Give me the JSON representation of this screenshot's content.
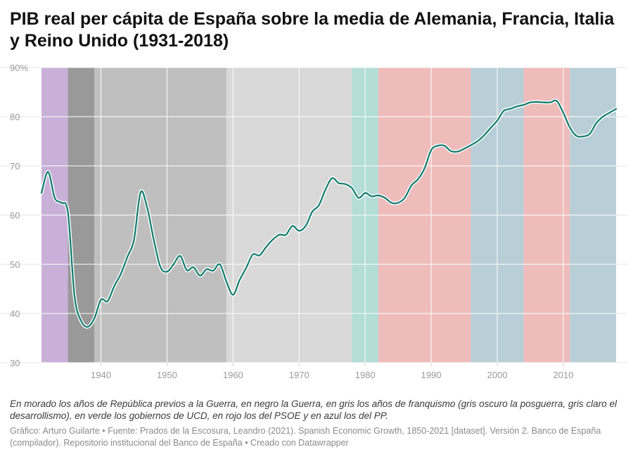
{
  "title": "PIB real per cápita de España sobre la media de Alemania, Francia, Italia y Reino Unido (1931-2018)",
  "note": "En morado los años de República previos a la Guerra, en negro la Guerra, en gris los años de franquismo (gris oscuro la posguerra, gris claro el desarrollismo), en verde los gobiernos de UCD, en rojo los del PSOE y en azul los del PP.",
  "credits": "Gráfico: Arturo Guilarte • Fuente: Prados de la Escosura, Leandro (2021). Spanish Economic Growth, 1850-2021 [dataset]. Versión 2. Banco de España (compilador). Repositorio institucional del Banco de España • Creado con Datawrapper",
  "colors": {
    "line": "#0e7a6b",
    "republica": "#c9b0d8",
    "guerra": "#999999",
    "posguerra": "#bfbfbf",
    "desarrollismo": "#d9d9d9",
    "ucd": "#b3ddd6",
    "psoe": "#efbcbc",
    "pp": "#b9cfd7"
  },
  "chart_data": {
    "type": "line",
    "xlim": [
      1931,
      2018
    ],
    "ylim": [
      30,
      90
    ],
    "x_ticks": [
      1940,
      1950,
      1960,
      1970,
      1980,
      1990,
      2000,
      2010
    ],
    "x_tick_labels": [
      "1940",
      "1950",
      "1960",
      "1970",
      "1980",
      "1990",
      "2000",
      "2010"
    ],
    "y_ticks": [
      30,
      40,
      50,
      60,
      70,
      80,
      90
    ],
    "y_tick_labels": [
      "30",
      "40",
      "50",
      "60",
      "70",
      "80",
      "90%"
    ],
    "grid": true,
    "periods": [
      {
        "name": "República",
        "start": 1931,
        "end": 1935,
        "color": "#c9b0d8"
      },
      {
        "name": "Guerra",
        "start": 1935,
        "end": 1939,
        "color": "#999999"
      },
      {
        "name": "Posguerra",
        "start": 1939,
        "end": 1959,
        "color": "#bfbfbf"
      },
      {
        "name": "Desarrollismo",
        "start": 1959,
        "end": 1978,
        "color": "#d9d9d9"
      },
      {
        "name": "UCD",
        "start": 1978,
        "end": 1982,
        "color": "#b3ddd6"
      },
      {
        "name": "PSOE",
        "start": 1982,
        "end": 1996,
        "color": "#efbcbc"
      },
      {
        "name": "PP",
        "start": 1996,
        "end": 2004,
        "color": "#b9cfd7"
      },
      {
        "name": "PSOE",
        "start": 2004,
        "end": 2011,
        "color": "#efbcbc"
      },
      {
        "name": "PP",
        "start": 2011,
        "end": 2018,
        "color": "#b9cfd7"
      }
    ],
    "series": [
      {
        "x": [
          1931,
          1932,
          1933,
          1934,
          1935,
          1936,
          1937,
          1938,
          1939,
          1940,
          1941,
          1942,
          1943,
          1944,
          1945,
          1946,
          1947,
          1948,
          1949,
          1950,
          1951,
          1952,
          1953,
          1954,
          1955,
          1956,
          1957,
          1958,
          1959,
          1960,
          1961,
          1962,
          1963,
          1964,
          1965,
          1966,
          1967,
          1968,
          1969,
          1970,
          1971,
          1972,
          1973,
          1974,
          1975,
          1976,
          1977,
          1978,
          1979,
          1980,
          1981,
          1982,
          1983,
          1984,
          1985,
          1986,
          1987,
          1988,
          1989,
          1990,
          1991,
          1992,
          1993,
          1994,
          1995,
          1996,
          1997,
          1998,
          1999,
          2000,
          2001,
          2002,
          2003,
          2004,
          2005,
          2006,
          2007,
          2008,
          2009,
          2010,
          2011,
          2012,
          2013,
          2014,
          2015,
          2016,
          2017,
          2018
        ],
        "values": [
          64.5,
          68.8,
          63.5,
          62.5,
          60.5,
          43.5,
          38.5,
          37.3,
          39,
          42.8,
          42.5,
          45.5,
          48,
          51.5,
          55,
          64.6,
          61.5,
          55,
          49.5,
          48.5,
          50,
          51.7,
          48.8,
          49.4,
          47.7,
          49,
          48.7,
          50,
          46.5,
          43.8,
          46.8,
          49.3,
          52,
          51.8,
          53.5,
          55,
          56,
          56,
          57.8,
          56.8,
          57.8,
          60.7,
          62,
          65.2,
          67.5,
          66.5,
          66.3,
          65.5,
          63.5,
          64.5,
          63.8,
          64,
          63.5,
          62.5,
          62.5,
          63.5,
          66,
          67.3,
          69.5,
          73.2,
          74.1,
          74.1,
          73,
          72.9,
          73.5,
          74.2,
          75,
          76.2,
          77.7,
          79.2,
          81.2,
          81.6,
          82.1,
          82.4,
          82.9,
          83,
          82.9,
          82.9,
          83.2,
          80.8,
          77.8,
          76.1,
          76,
          76.5,
          78.7,
          80,
          80.8,
          81.6
        ]
      }
    ]
  }
}
